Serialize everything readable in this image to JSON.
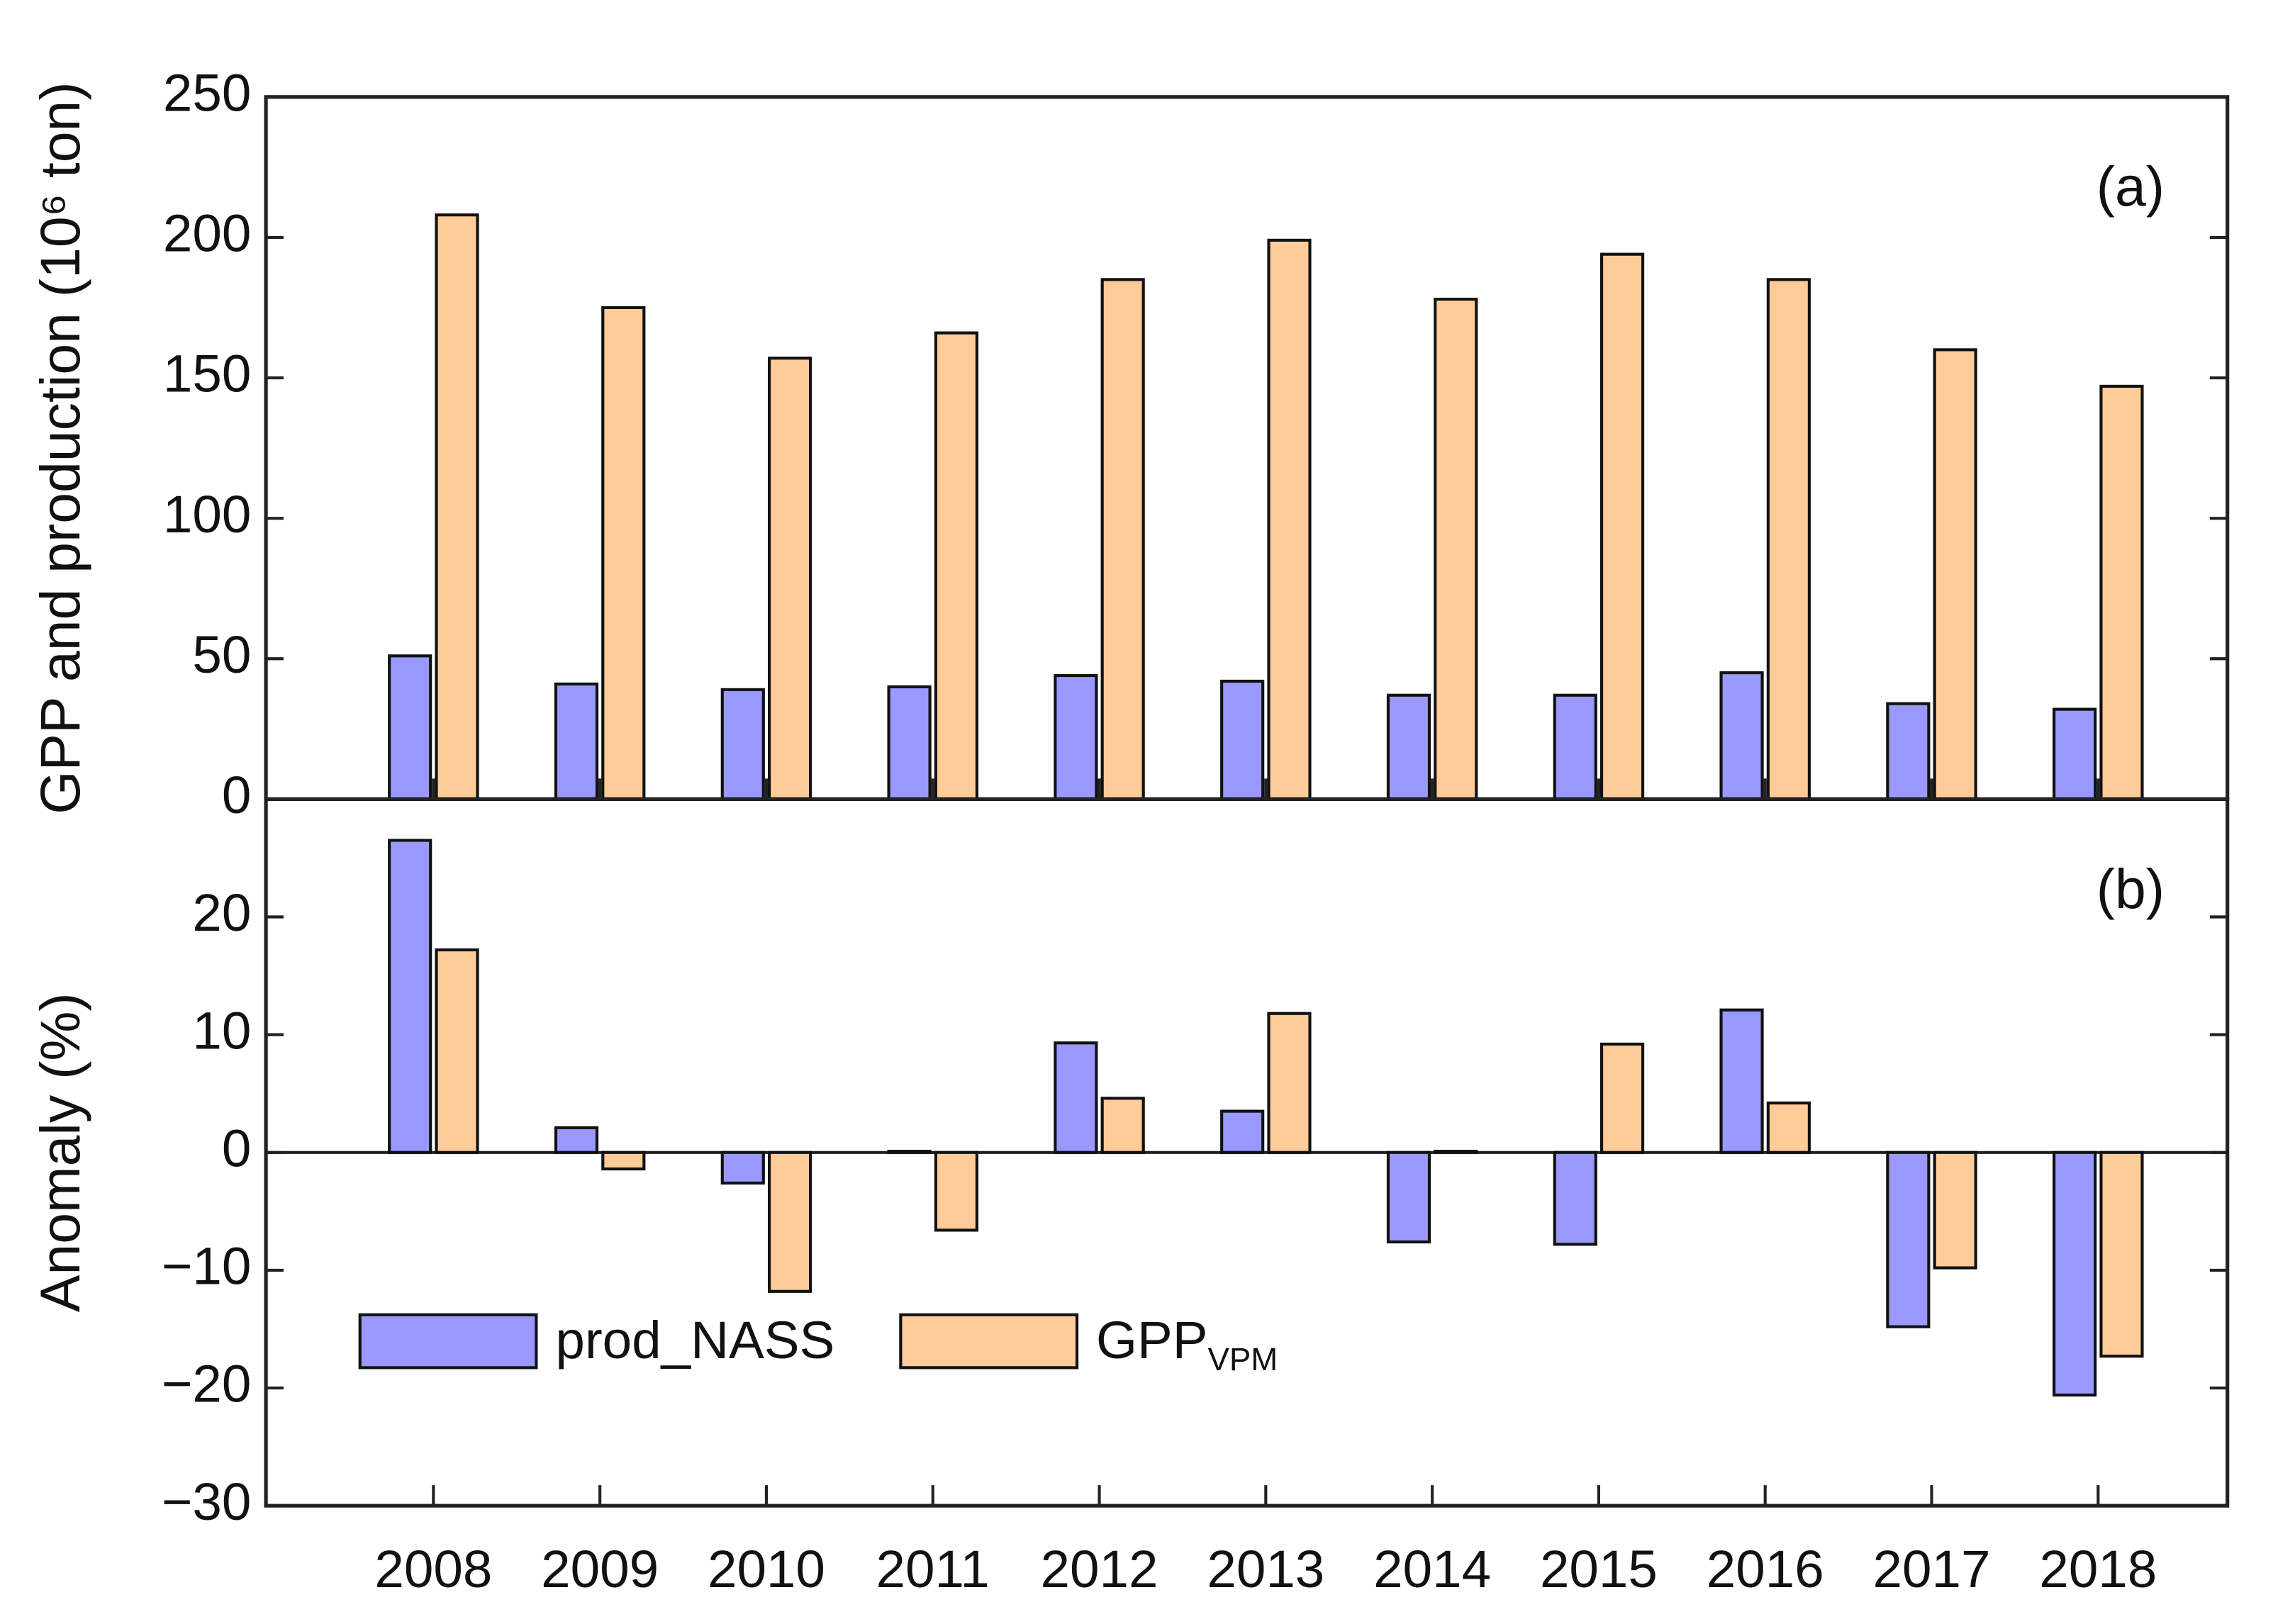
{
  "chart_data": [
    {
      "type": "bar",
      "ylabel": "GPP and production (10⁶ ton)",
      "annotation": "(a)",
      "series": [
        {
          "color": "#9999ff",
          "values": [
            51,
            41,
            39,
            40,
            44,
            42,
            37,
            37,
            45,
            34,
            32
          ]
        },
        {
          "color": "#ffcc99",
          "values": [
            208,
            175,
            157,
            166,
            185,
            199,
            178,
            194,
            185,
            160,
            147
          ]
        }
      ],
      "ylim": [
        0,
        250
      ],
      "yticks": [
        0,
        50,
        100,
        150,
        200,
        250
      ]
    },
    {
      "type": "bar",
      "ylabel": "Anomaly (%)",
      "annotation": "(b)",
      "categories": [
        "2008",
        "2009",
        "2010",
        "2011",
        "2012",
        "2013",
        "2014",
        "2015",
        "2016",
        "2017",
        "2018"
      ],
      "series": [
        {
          "name": "prod_NASS",
          "color": "#9999ff",
          "values": [
            26.5,
            2.1,
            -2.6,
            0.1,
            9.3,
            3.5,
            -7.6,
            -7.8,
            12.1,
            -14.8,
            -20.6
          ]
        },
        {
          "name": "GPP",
          "name_subscript": "VPM",
          "color": "#ffcc99",
          "values": [
            17.2,
            -1.4,
            -11.8,
            -6.6,
            4.6,
            11.8,
            0.1,
            9.2,
            4.2,
            -9.8,
            -17.3
          ]
        }
      ],
      "ylim": [
        -30,
        30
      ],
      "yticks": [
        {
          "value": -30,
          "label": "−30"
        },
        {
          "value": -20,
          "label": "−20"
        },
        {
          "value": -10,
          "label": "−10"
        },
        0,
        10,
        20
      ],
      "legend": "lower left"
    }
  ]
}
